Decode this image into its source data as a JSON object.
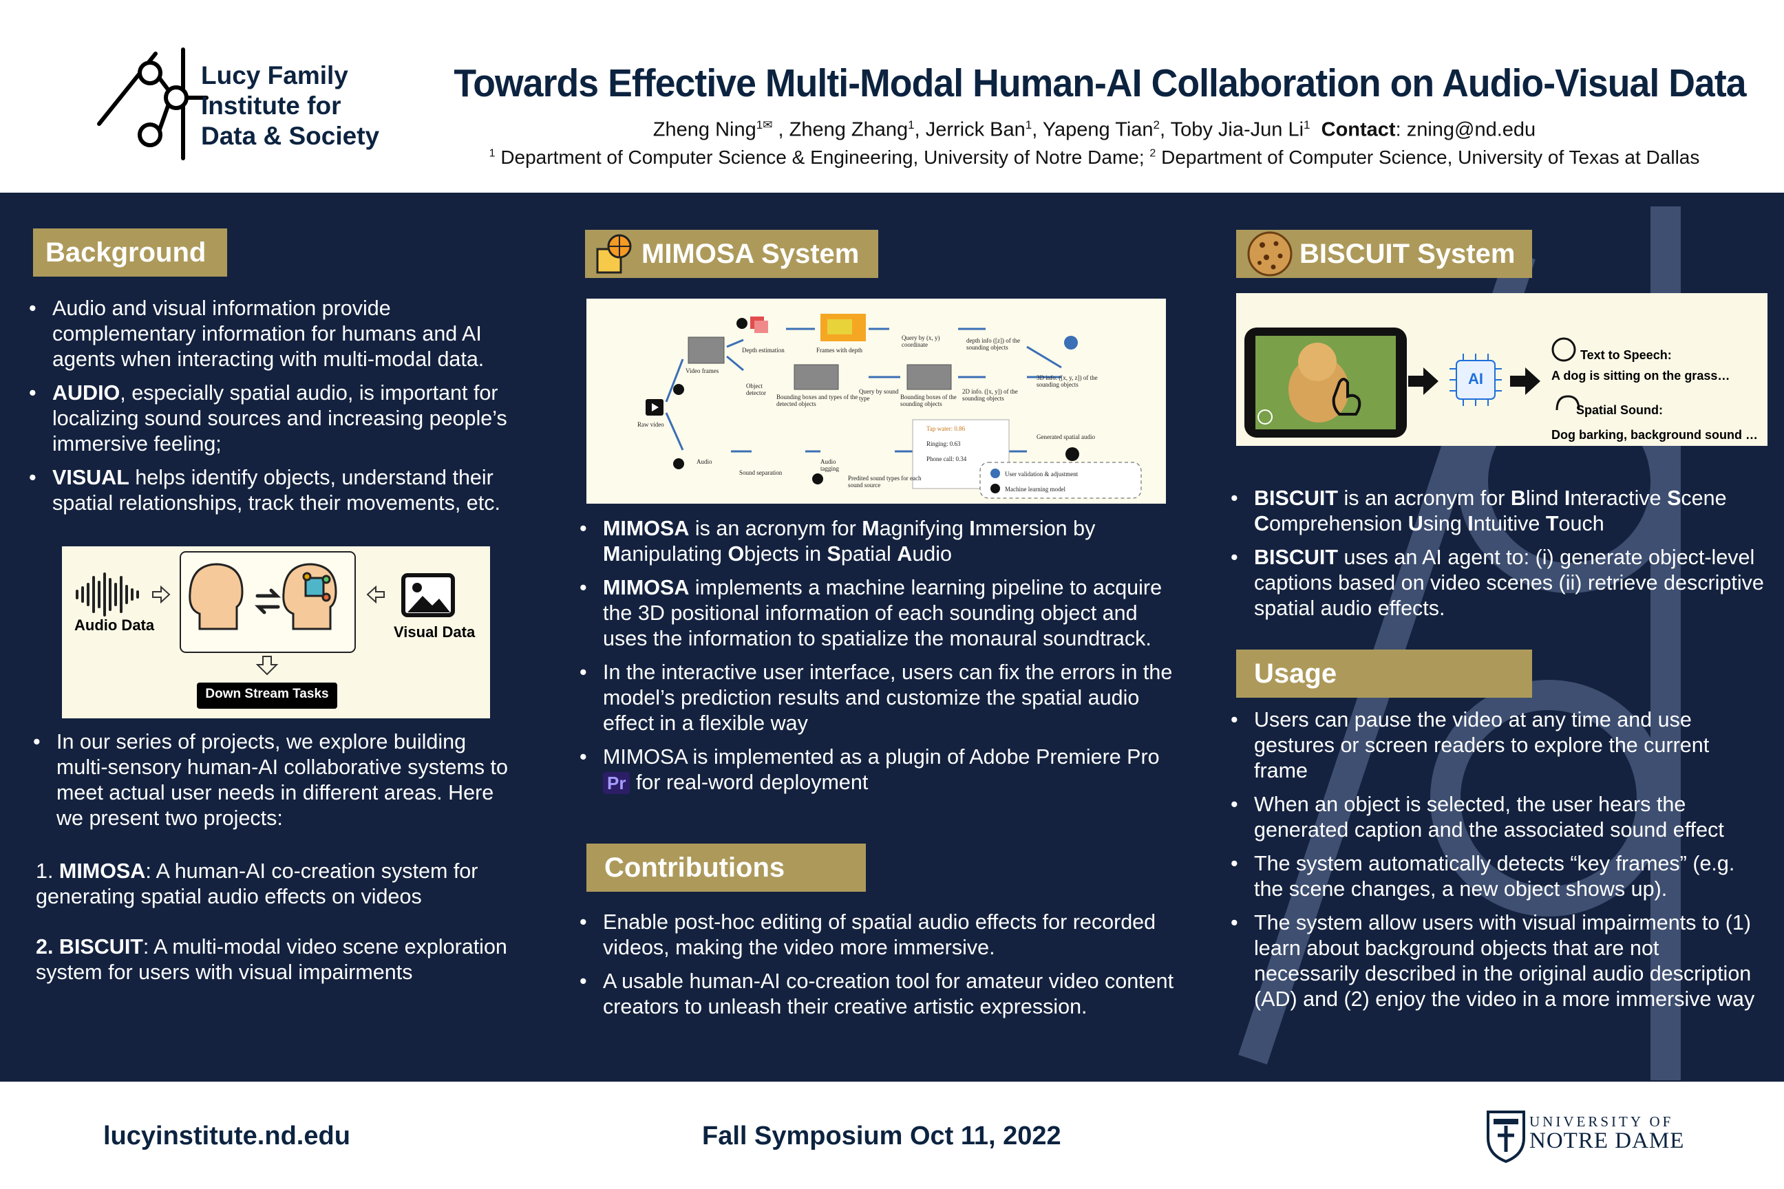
{
  "header": {
    "logo_line1": "Lucy Family",
    "logo_line2": "Institute for",
    "logo_line3": "Data & Society",
    "title": "Towards Effective Multi-Modal Human-AI Collaboration on Audio-Visual Data",
    "authors": [
      {
        "name": "Zheng Ning",
        "sup": "1✉"
      },
      {
        "name": "Zheng Zhang",
        "sup": "1"
      },
      {
        "name": "Jerrick Ban",
        "sup": "1"
      },
      {
        "name": "Yapeng Tian",
        "sup": "2"
      },
      {
        "name": "Toby Jia-Jun Li",
        "sup": "1"
      }
    ],
    "contact_label": "Contact",
    "contact_email": "zning@nd.edu",
    "affil_1": "Department of Computer Science & Engineering, University of Notre Dame;",
    "affil_2": "Department of Computer Science, University of Texas at Dallas"
  },
  "background": {
    "heading": "Background",
    "bullets": [
      {
        "bold": "",
        "text": "Audio and visual information provide complementary information for humans and AI agents when interacting with multi-modal data."
      },
      {
        "bold": "AUDIO",
        "text": ", especially spatial audio, is important for localizing sound sources and increasing people’s immersive feeling;"
      },
      {
        "bold": "VISUAL",
        "text": " helps identify objects, understand their spatial relationships, track their movements, etc."
      }
    ],
    "figure": {
      "audio_label": "Audio Data",
      "visual_label": "Visual Data",
      "tasks_label": "Down Stream Tasks"
    },
    "bullet_series": "In our series of projects, we explore building multi-sensory human-AI collaborative systems to meet actual user needs in different areas. Here we present two projects:",
    "project1_num": "1.",
    "project1_bold": "MIMOSA",
    "project1_text": ": A human-AI co-creation system for generating spatial audio effects on videos",
    "project2_num": "2.",
    "project2_bold": "BISCUIT",
    "project2_text": ": A multi-modal video scene exploration system for users with visual impairments"
  },
  "mimosa": {
    "heading": "MIMOSA System",
    "figure": {
      "depth_estimation": "Depth estimation",
      "frames_with_depth": "Frames with depth",
      "query_xy": "Query by (x, y) coordinate",
      "depth_info": "depth info ([z]) of the sounding objects",
      "video_frames": "Video frames",
      "object_detector": "Object detector",
      "bounding_boxes_types": "Bounding boxes and types of the detected objects",
      "query_sound_type": "Query by sound type",
      "bounding_boxes_sounding": "Bounding boxes of the sounding objects",
      "info_2d": "2D info. ([x, y]) of the sounding objects",
      "info_3d": "3D info. ([x, y, z]) of the sounding objects",
      "raw_video": "Raw video",
      "audio": "Audio",
      "sound_separation": "Sound separation",
      "audio_tagging": "Audio tagging",
      "tap_water": "Tap water: 0.86",
      "ringing": "Ringing: 0.63",
      "phone_call": "Phone call: 0.34",
      "predicted_types": "Predited sound types for each sound source",
      "generated_spatial_audio": "Generated spatial audio",
      "legend_user": "User validation & adjustment",
      "legend_ml": "Machine learning model"
    },
    "b1_parts": [
      {
        "t": "MIMOSA",
        "b": true
      },
      {
        "t": " is an acronym for ",
        "b": false
      },
      {
        "t": "M",
        "b": true
      },
      {
        "t": "agnifying ",
        "b": false
      },
      {
        "t": "I",
        "b": true
      },
      {
        "t": "mmersion by ",
        "b": false
      },
      {
        "t": "M",
        "b": true
      },
      {
        "t": "anipulating ",
        "b": false
      },
      {
        "t": "O",
        "b": true
      },
      {
        "t": "bjects in ",
        "b": false
      },
      {
        "t": "S",
        "b": true
      },
      {
        "t": "patial ",
        "b": false
      },
      {
        "t": "A",
        "b": true
      },
      {
        "t": "udio",
        "b": false
      }
    ],
    "b2_bold": "MIMOSA",
    "b2_text": " implements a machine learning pipeline to acquire the 3D positional information of each sounding object and uses the information to spatialize the monaural soundtrack.",
    "b3_text": "In the interactive user interface, users can fix the errors in the model’s prediction results and customize the spatial audio effect in a flexible way",
    "b4_pre": "MIMOSA is implemented as a plugin of Adobe Premiere Pro",
    "b4_badge": "Pr",
    "b4_post": " for real-word deployment"
  },
  "contributions": {
    "heading": "Contributions",
    "bullets": [
      "Enable post-hoc editing of spatial audio effects for recorded videos, making the video more immersive.",
      "A usable human-AI co-creation tool for amateur video content creators to unleash their creative artistic expression."
    ]
  },
  "biscuit": {
    "heading": "BISCUIT System",
    "figure": {
      "ai_chip": "AI",
      "tts_label": "Text to Speech:",
      "tts_text": "A  dog is sitting on the grass…",
      "spatial_label": "Spatial Sound:",
      "spatial_text": "Dog barking, background sound …"
    },
    "b1_parts": [
      {
        "t": "BISCUIT",
        "b": true
      },
      {
        "t": " is an acronym for ",
        "b": false
      },
      {
        "t": "B",
        "b": true
      },
      {
        "t": "lind ",
        "b": false
      },
      {
        "t": "I",
        "b": true
      },
      {
        "t": "nteractive ",
        "b": false
      },
      {
        "t": "S",
        "b": true
      },
      {
        "t": "cene ",
        "b": false
      },
      {
        "t": "C",
        "b": true
      },
      {
        "t": "omprehension ",
        "b": false
      },
      {
        "t": "U",
        "b": true
      },
      {
        "t": "sing ",
        "b": false
      },
      {
        "t": "I",
        "b": true
      },
      {
        "t": "ntuitive ",
        "b": false
      },
      {
        "t": "T",
        "b": true
      },
      {
        "t": "ouch",
        "b": false
      }
    ],
    "b2_bold": "BISCUIT",
    "b2_text": " uses an AI agent to: (i) generate object-level captions based on video scenes (ii) retrieve descriptive spatial audio effects."
  },
  "usage": {
    "heading": "Usage",
    "bullets": [
      "Users can pause the video at any time and use gestures or screen readers to explore the current frame",
      "When an object is selected, the user hears the generated caption and the associated sound effect",
      "The system automatically detects “key frames” (e.g. the scene changes, a new object shows up).",
      "The system allow users with visual impairments to (1) learn about background objects that are not necessarily described in the original audio description (AD) and (2) enjoy the video in a more immersive way"
    ]
  },
  "footer": {
    "url": "lucyinstitute.nd.edu",
    "event": "Fall Symposium Oct 11, 2022",
    "nd_line1": "UNIVERSITY OF",
    "nd_line2": "NOTRE DAME"
  },
  "colors": {
    "navy": "#14223f",
    "gold": "#ad9a5b",
    "title_navy": "#0c2340",
    "figure_bg": "#fbf8e6"
  }
}
